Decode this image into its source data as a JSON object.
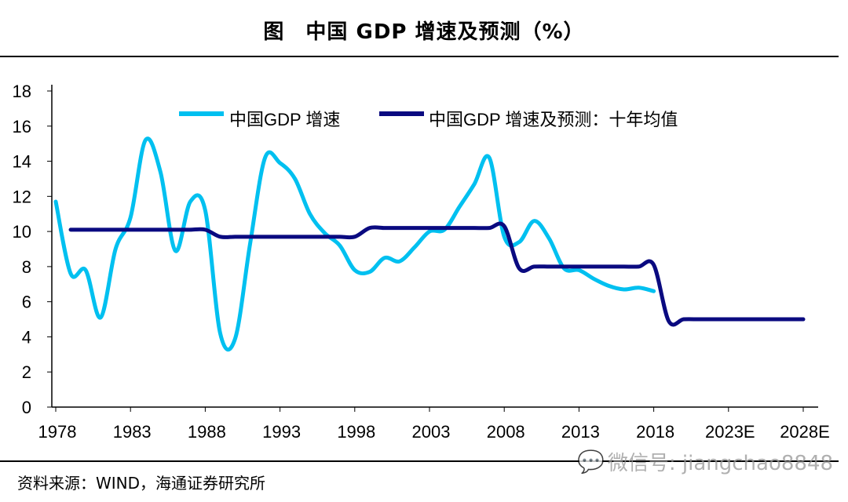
{
  "title": "图　中国 GDP 增速及预测（%）",
  "source": "资料来源：WIND，海通证券研究所",
  "watermark": "微信号: jiangchao8848",
  "chart_data": {
    "type": "line",
    "title": "图　中国 GDP 增速及预测（%）",
    "xlabel": "",
    "ylabel": "",
    "xlim": [
      1978,
      2028
    ],
    "ylim": [
      0,
      18
    ],
    "x_ticks": [
      "1978",
      "1983",
      "1988",
      "1993",
      "1998",
      "2003",
      "2008",
      "2013",
      "2018",
      "2023E",
      "2028E"
    ],
    "y_ticks": [
      0,
      2,
      4,
      6,
      8,
      10,
      12,
      14,
      16,
      18
    ],
    "grid": false,
    "legend_position": "top",
    "series": [
      {
        "name": "中国GDP 增速",
        "color": "#00c0f0",
        "x": [
          1978,
          1979,
          1980,
          1981,
          1982,
          1983,
          1984,
          1985,
          1986,
          1987,
          1988,
          1989,
          1990,
          1991,
          1992,
          1993,
          1994,
          1995,
          1996,
          1997,
          1998,
          1999,
          2000,
          2001,
          2002,
          2003,
          2004,
          2005,
          2006,
          2007,
          2008,
          2009,
          2010,
          2011,
          2012,
          2013,
          2014,
          2015,
          2016,
          2017,
          2018
        ],
        "values": [
          11.7,
          7.6,
          7.8,
          5.1,
          9.0,
          10.8,
          15.2,
          13.4,
          8.9,
          11.7,
          11.2,
          4.2,
          3.9,
          9.3,
          14.2,
          13.9,
          13.0,
          11.0,
          9.9,
          9.2,
          7.8,
          7.7,
          8.5,
          8.3,
          9.1,
          10.0,
          10.1,
          11.4,
          12.7,
          14.2,
          9.7,
          9.4,
          10.6,
          9.6,
          7.9,
          7.8,
          7.3,
          6.9,
          6.7,
          6.8,
          6.6
        ]
      },
      {
        "name": "中国GDP 增速及预测：十年均值",
        "color": "#0a0a80",
        "x": [
          1979,
          1980,
          1981,
          1982,
          1983,
          1984,
          1985,
          1986,
          1987,
          1988,
          1989,
          1990,
          1991,
          1992,
          1993,
          1994,
          1995,
          1996,
          1997,
          1998,
          1999,
          2000,
          2001,
          2002,
          2003,
          2004,
          2005,
          2006,
          2007,
          2008,
          2009,
          2010,
          2011,
          2012,
          2013,
          2014,
          2015,
          2016,
          2017,
          2018,
          2019,
          2020,
          2021,
          2022,
          2023,
          2024,
          2025,
          2026,
          2027,
          2028
        ],
        "values": [
          10.1,
          10.1,
          10.1,
          10.1,
          10.1,
          10.1,
          10.1,
          10.1,
          10.1,
          10.1,
          9.7,
          9.7,
          9.7,
          9.7,
          9.7,
          9.7,
          9.7,
          9.7,
          9.7,
          9.7,
          10.2,
          10.2,
          10.2,
          10.2,
          10.2,
          10.2,
          10.2,
          10.2,
          10.2,
          10.3,
          7.9,
          8.0,
          8.0,
          8.0,
          8.0,
          8.0,
          8.0,
          8.0,
          8.0,
          8.1,
          4.9,
          5.0,
          5.0,
          5.0,
          5.0,
          5.0,
          5.0,
          5.0,
          5.0,
          5.0
        ]
      }
    ]
  }
}
